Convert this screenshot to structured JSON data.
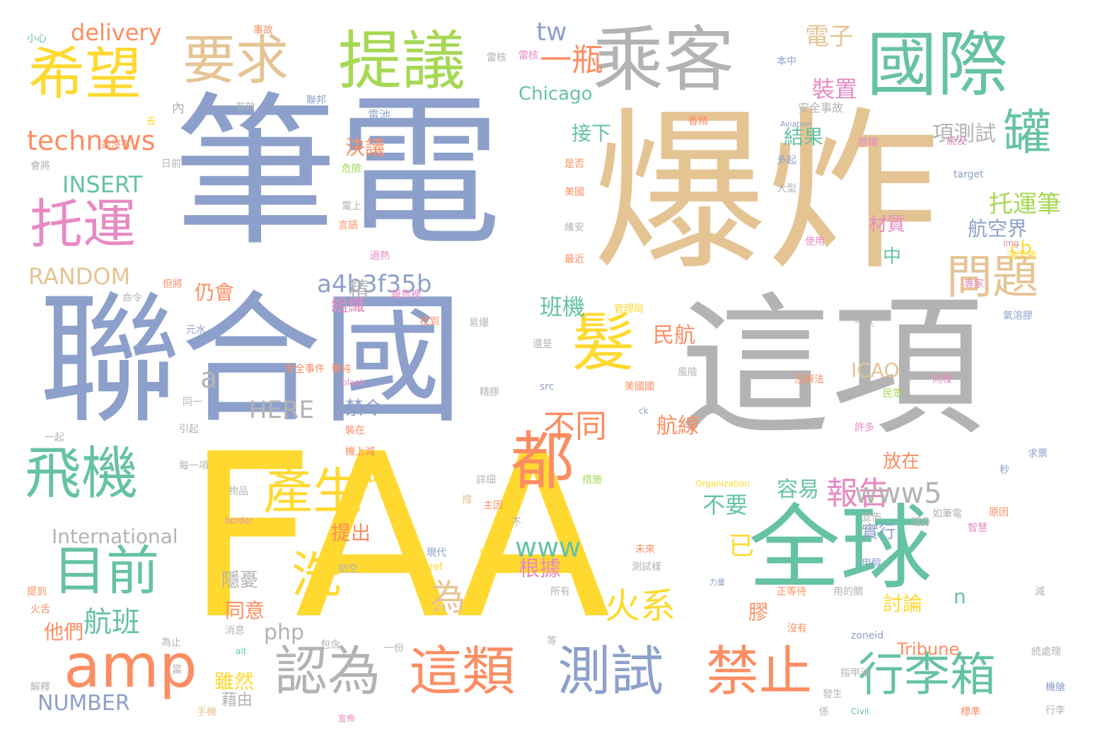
{
  "cloud": {
    "palette": [
      "#8da0cb",
      "#e5c494",
      "#b3b3b3",
      "#66c2a5",
      "#ffd92f",
      "#fc8d62",
      "#a6d854",
      "#e78ac3"
    ],
    "words": [
      {
        "text": "筆電",
        "color": "#8da0cb"
      },
      {
        "text": "爆炸",
        "color": "#e5c494"
      },
      {
        "text": "這項",
        "color": "#b3b3b3"
      },
      {
        "text": "聯合國",
        "color": "#8da0cb"
      },
      {
        "text": "FAA",
        "color": "#ffd92f"
      },
      {
        "text": "全球",
        "color": "#66c2a5"
      },
      {
        "text": "乘客",
        "color": "#b3b3b3"
      },
      {
        "text": "國際",
        "color": "#66c2a5"
      },
      {
        "text": "提議",
        "color": "#a6d854"
      },
      {
        "text": "要求",
        "color": "#e5c494"
      },
      {
        "text": "希望",
        "color": "#ffd92f"
      },
      {
        "text": "托運",
        "color": "#e78ac3"
      },
      {
        "text": "飛機",
        "color": "#66c2a5"
      },
      {
        "text": "目前",
        "color": "#66c2a5"
      },
      {
        "text": "amp",
        "color": "#fc8d62"
      },
      {
        "text": "髮",
        "color": "#ffd92f"
      },
      {
        "text": "都",
        "color": "#fc8d62"
      },
      {
        "text": "產生",
        "color": "#ffd92f"
      },
      {
        "text": "洗",
        "color": "#ffd92f"
      },
      {
        "text": "認為",
        "color": "#b3b3b3"
      },
      {
        "text": "這類",
        "color": "#fc8d62"
      },
      {
        "text": "測試",
        "color": "#8da0cb"
      },
      {
        "text": "禁止",
        "color": "#fc8d62"
      },
      {
        "text": "行李箱",
        "color": "#66c2a5"
      },
      {
        "text": "罐",
        "color": "#66c2a5"
      },
      {
        "text": "問題",
        "color": "#e5c494"
      },
      {
        "text": "一瓶",
        "color": "#fc8d62"
      },
      {
        "text": "不同",
        "color": "#fc8d62"
      },
      {
        "text": "報告",
        "color": "#e78ac3"
      },
      {
        "text": "為",
        "color": "#e5c494"
      },
      {
        "text": "火系",
        "color": "#ffd92f"
      },
      {
        "text": "technews",
        "color": "#fc8d62"
      },
      {
        "text": "INSERT",
        "color": "#66c2a5"
      },
      {
        "text": "RANDOM",
        "color": "#e5c494"
      },
      {
        "text": "delivery",
        "color": "#fc8d62"
      },
      {
        "text": "tw",
        "color": "#8da0cb"
      },
      {
        "text": "Chicago",
        "color": "#66c2a5"
      },
      {
        "text": "a4b3f35b",
        "color": "#8da0cb"
      },
      {
        "text": "HERE",
        "color": "#b3b3b3"
      },
      {
        "text": "a",
        "color": "#b3b3b3"
      },
      {
        "text": "International",
        "color": "#b3b3b3"
      },
      {
        "text": "NUMBER",
        "color": "#8da0cb"
      },
      {
        "text": "航班",
        "color": "#66c2a5"
      },
      {
        "text": "www5",
        "color": "#b3b3b3"
      },
      {
        "text": "www",
        "color": "#66c2a5"
      },
      {
        "text": "電子",
        "color": "#e5c494"
      },
      {
        "text": "裝置",
        "color": "#e78ac3"
      },
      {
        "text": "項測試",
        "color": "#b3b3b3"
      },
      {
        "text": "托運筆",
        "color": "#a6d854"
      },
      {
        "text": "結果",
        "color": "#66c2a5"
      },
      {
        "text": "接下",
        "color": "#66c2a5"
      },
      {
        "text": "決議",
        "color": "#fc8d62"
      },
      {
        "text": "cb",
        "color": "#ffd92f"
      },
      {
        "text": "航空界",
        "color": "#8da0cb"
      },
      {
        "text": "材質",
        "color": "#e78ac3"
      },
      {
        "text": "精",
        "color": "#b3b3b3"
      },
      {
        "text": "中",
        "color": "#66c2a5"
      },
      {
        "text": "班機",
        "color": "#66c2a5"
      },
      {
        "text": "民航",
        "color": "#fc8d62"
      },
      {
        "text": "仍會",
        "color": "#fc8d62"
      },
      {
        "text": "組織",
        "color": "#e78ac3"
      },
      {
        "text": "ICAO",
        "color": "#e5c494"
      },
      {
        "text": "禁令",
        "color": "#8da0cb"
      },
      {
        "text": "航線",
        "color": "#fc8d62"
      },
      {
        "text": "不要",
        "color": "#66c2a5"
      },
      {
        "text": "容易",
        "color": "#66c2a5"
      },
      {
        "text": "已",
        "color": "#ffd92f"
      },
      {
        "text": "時",
        "color": "#ffd92f"
      },
      {
        "text": "提出",
        "color": "#fc8d62"
      },
      {
        "text": "根據",
        "color": "#e78ac3"
      },
      {
        "text": "實行",
        "color": "#8da0cb"
      },
      {
        "text": "放在",
        "color": "#fc8d62"
      },
      {
        "text": "隱憂",
        "color": "#b3b3b3"
      },
      {
        "text": "同意",
        "color": "#fc8d62"
      },
      {
        "text": "n",
        "color": "#66c2a5"
      },
      {
        "text": "討論",
        "color": "#ffd92f"
      },
      {
        "text": "膠",
        "color": "#fc8d62"
      },
      {
        "text": "php",
        "color": "#b3b3b3"
      },
      {
        "text": "他們",
        "color": "#fc8d62"
      },
      {
        "text": "雖然",
        "color": "#ffd92f"
      },
      {
        "text": "藉由",
        "color": "#b3b3b3"
      },
      {
        "text": "Tribune",
        "color": "#fc8d62"
      },
      {
        "text": "小心",
        "color": "#66c2a5"
      },
      {
        "text": "事故",
        "color": "#fc8d62"
      },
      {
        "text": "雷核",
        "color": "#e78ac3"
      },
      {
        "text": "本中",
        "color": "#8da0cb"
      },
      {
        "text": "內",
        "color": "#b3b3b3"
      },
      {
        "text": "有效",
        "color": "#b3b3b3"
      },
      {
        "text": "聯邦",
        "color": "#8da0cb"
      },
      {
        "text": "電池",
        "color": "#8da0cb"
      },
      {
        "text": "安全事故",
        "color": "#b3b3b3"
      },
      {
        "text": "並沒有",
        "color": "#fc8d62"
      },
      {
        "text": "去",
        "color": "#ffd92f"
      },
      {
        "text": "日前",
        "color": "#b3b3b3"
      },
      {
        "text": "危險",
        "color": "#a6d854"
      },
      {
        "text": "是否",
        "color": "#fc8d62"
      },
      {
        "text": "多起",
        "color": "#8da0cb"
      },
      {
        "text": "target",
        "color": "#8da0cb"
      },
      {
        "text": "會將",
        "color": "#b3b3b3"
      },
      {
        "text": "美國",
        "color": "#fc8d62"
      },
      {
        "text": "大型",
        "color": "#b3b3b3"
      },
      {
        "text": "電上",
        "color": "#b3b3b3"
      },
      {
        "text": "維安",
        "color": "#b3b3b3"
      },
      {
        "text": "使用",
        "color": "#e78ac3"
      },
      {
        "text": "洗手液",
        "color": "#ffd92f"
      },
      {
        "text": "img",
        "color": "#e78ac3"
      },
      {
        "text": "最近",
        "color": "#fc8d62"
      },
      {
        "text": "命令",
        "color": "#b3b3b3"
      },
      {
        "text": "但將",
        "color": "#fc8d62"
      },
      {
        "text": "報告裡",
        "color": "#e78ac3"
      },
      {
        "text": "管理局",
        "color": "#ffd92f"
      },
      {
        "text": "易爆",
        "color": "#b3b3b3"
      },
      {
        "text": "找到",
        "color": "#fc8d62"
      },
      {
        "text": "元水",
        "color": "#8da0cb"
      },
      {
        "text": "一共",
        "color": "#b3b3b3"
      },
      {
        "text": "氣溶膠",
        "color": "#8da0cb"
      },
      {
        "text": "專家",
        "color": "#e78ac3"
      },
      {
        "text": "還是",
        "color": "#b3b3b3"
      },
      {
        "text": "安全事件",
        "color": "#fc8d62"
      },
      {
        "text": "華純",
        "color": "#fc8d62"
      },
      {
        "text": "風險",
        "color": "#b3b3b3"
      },
      {
        "text": "沒辦法",
        "color": "#fc8d62"
      },
      {
        "text": "民眾",
        "color": "#a6d854"
      },
      {
        "text": "blank",
        "color": "#e78ac3"
      },
      {
        "text": "src",
        "color": "#8da0cb"
      },
      {
        "text": "美國國",
        "color": "#fc8d62"
      },
      {
        "text": "同樣",
        "color": "#e78ac3"
      },
      {
        "text": "同一",
        "color": "#b3b3b3"
      },
      {
        "text": "ck",
        "color": "#8da0cb"
      },
      {
        "text": "引起",
        "color": "#b3b3b3"
      },
      {
        "text": "一起",
        "color": "#b3b3b3"
      },
      {
        "text": "裝在",
        "color": "#fc8d62"
      },
      {
        "text": "每一項",
        "color": "#b3b3b3"
      },
      {
        "text": "機上減",
        "color": "#fc8d62"
      },
      {
        "text": "許多",
        "color": "#e78ac3"
      },
      {
        "text": "求票",
        "color": "#8da0cb"
      },
      {
        "text": "物品",
        "color": "#b3b3b3"
      },
      {
        "text": "措施",
        "color": "#a6d854"
      },
      {
        "text": "Organization",
        "color": "#ffd92f"
      },
      {
        "text": "秒",
        "color": "#8da0cb"
      },
      {
        "text": "如筆電",
        "color": "#b3b3b3"
      },
      {
        "text": "border",
        "color": "#e78ac3"
      },
      {
        "text": "主因",
        "color": "#fc8d62"
      },
      {
        "text": "不",
        "color": "#b3b3b3"
      },
      {
        "text": "原因",
        "color": "#fc8d62"
      },
      {
        "text": "隨身",
        "color": "#b3b3b3"
      },
      {
        "text": "現代",
        "color": "#8da0cb"
      },
      {
        "text": "未來",
        "color": "#fc8d62"
      },
      {
        "text": "智慧",
        "color": "#e78ac3"
      },
      {
        "text": "href",
        "color": "#ffd92f"
      },
      {
        "text": "航空",
        "color": "#b3b3b3"
      },
      {
        "text": "測試樣",
        "color": "#b3b3b3"
      },
      {
        "text": "甲醇",
        "color": "#8da0cb"
      },
      {
        "text": "提到",
        "color": "#fc8d62"
      },
      {
        "text": "火舌",
        "color": "#fc8d62"
      },
      {
        "text": "所有",
        "color": "#b3b3b3"
      },
      {
        "text": "用的關",
        "color": "#b3b3b3"
      },
      {
        "text": "正等待",
        "color": "#fc8d62"
      },
      {
        "text": "減",
        "color": "#b3b3b3"
      },
      {
        "text": "為止",
        "color": "#b3b3b3"
      },
      {
        "text": "當",
        "color": "#b3b3b3"
      },
      {
        "text": "alt",
        "color": "#66c2a5"
      },
      {
        "text": "消息",
        "color": "#b3b3b3"
      },
      {
        "text": "包含",
        "color": "#b3b3b3"
      },
      {
        "text": "一份",
        "color": "#b3b3b3"
      },
      {
        "text": "等",
        "color": "#b3b3b3"
      },
      {
        "text": "沒有",
        "color": "#fc8d62"
      },
      {
        "text": "zoneid",
        "color": "#8da0cb"
      },
      {
        "text": "統處理",
        "color": "#b3b3b3"
      },
      {
        "text": "解釋",
        "color": "#b3b3b3"
      },
      {
        "text": "指甲油",
        "color": "#b3b3b3"
      },
      {
        "text": "發生",
        "color": "#b3b3b3"
      },
      {
        "text": "機艙",
        "color": "#8da0cb"
      },
      {
        "text": "手機",
        "color": "#e5c494"
      },
      {
        "text": "係",
        "color": "#b3b3b3"
      },
      {
        "text": "Civil",
        "color": "#66c2a5"
      },
      {
        "text": "標準",
        "color": "#fc8d62"
      },
      {
        "text": "行李",
        "color": "#b3b3b3"
      },
      {
        "text": "宣佈",
        "color": "#e78ac3"
      },
      {
        "text": "雷核",
        "color": "#b3b3b3"
      },
      {
        "text": "統沒",
        "color": "#e78ac3"
      },
      {
        "text": "香精",
        "color": "#fc8d62"
      },
      {
        "text": "膠罐",
        "color": "#e78ac3"
      },
      {
        "text": "Aviation",
        "color": "#8da0cb"
      },
      {
        "text": "過熱",
        "color": "#e78ac3"
      },
      {
        "text": "言語",
        "color": "#fc8d62"
      },
      {
        "text": "詳細",
        "color": "#b3b3b3"
      },
      {
        "text": "avw",
        "color": "#ffd92f"
      },
      {
        "text": "力量",
        "color": "#8da0cb"
      },
      {
        "text": "撐",
        "color": "#e5c494"
      },
      {
        "text": "精膠",
        "color": "#b3b3b3"
      },
      {
        "text": "宣佈",
        "color": "#b3b3b3"
      }
    ]
  }
}
